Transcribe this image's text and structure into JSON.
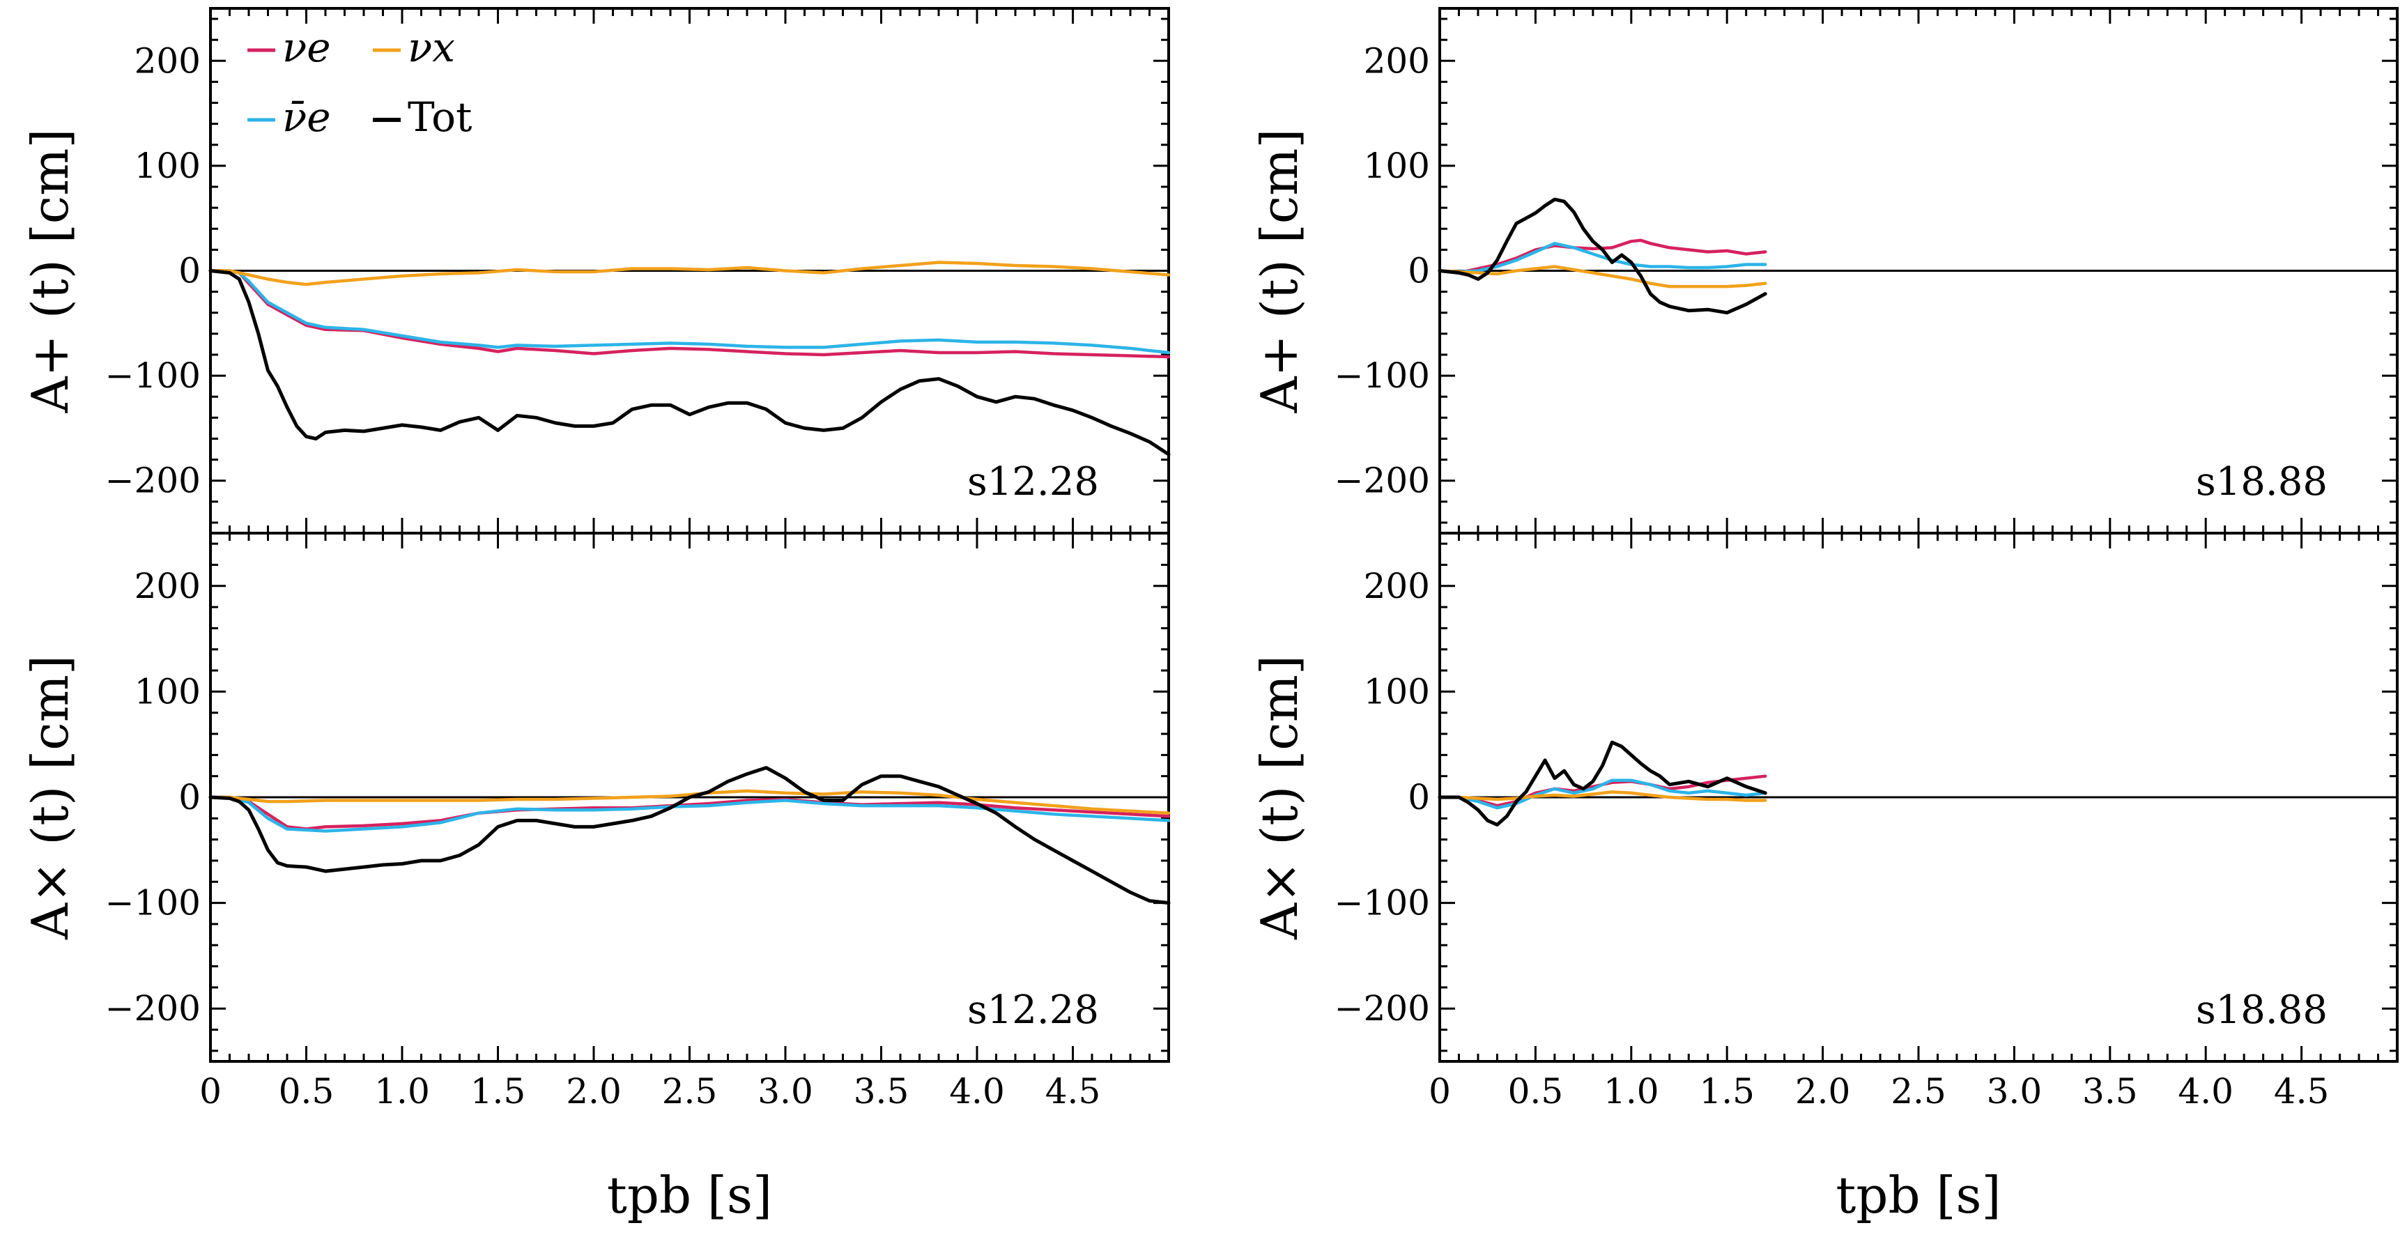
{
  "chart_data": [
    {
      "type": "line",
      "row": "top",
      "col": "left",
      "panel_label": "s12.28",
      "ylabel": "A+ (t) [cm]",
      "xlabel": "",
      "xlim": [
        0,
        5.0
      ],
      "ylim": [
        -250,
        250
      ],
      "x_ticks": [
        "0",
        "0.5",
        "1.0",
        "1.5",
        "2.0",
        "2.5",
        "3.0",
        "3.5",
        "4.0",
        "4.5"
      ],
      "y_ticks": [
        "−200",
        "−100",
        "0",
        "100",
        "200"
      ],
      "legend": "top-left",
      "zero_line": true,
      "series": [
        {
          "name": "νe",
          "color": "#d6225e",
          "x": [
            0,
            0.1,
            0.15,
            0.2,
            0.3,
            0.4,
            0.5,
            0.6,
            0.8,
            1.0,
            1.2,
            1.4,
            1.5,
            1.6,
            1.8,
            2.0,
            2.2,
            2.4,
            2.6,
            2.8,
            3.0,
            3.2,
            3.4,
            3.6,
            3.8,
            4.0,
            4.2,
            4.4,
            4.6,
            4.8,
            5.0
          ],
          "y": [
            0,
            0,
            -2,
            -12,
            -32,
            -42,
            -52,
            -56,
            -57,
            -64,
            -70,
            -74,
            -77,
            -74,
            -76,
            -79,
            -76,
            -74,
            -75,
            -77,
            -79,
            -80,
            -78,
            -76,
            -78,
            -78,
            -77,
            -79,
            -80,
            -81,
            -82
          ]
        },
        {
          "name": "ν̄e",
          "color": "#2cb4e8",
          "x": [
            0,
            0.1,
            0.15,
            0.2,
            0.3,
            0.4,
            0.5,
            0.6,
            0.8,
            1.0,
            1.2,
            1.4,
            1.5,
            1.6,
            1.8,
            2.0,
            2.2,
            2.4,
            2.6,
            2.8,
            3.0,
            3.2,
            3.4,
            3.6,
            3.8,
            4.0,
            4.2,
            4.4,
            4.6,
            4.8,
            5.0
          ],
          "y": [
            0,
            0,
            -2,
            -10,
            -30,
            -40,
            -50,
            -54,
            -56,
            -62,
            -68,
            -71,
            -73,
            -71,
            -72,
            -71,
            -70,
            -69,
            -70,
            -72,
            -73,
            -73,
            -70,
            -67,
            -66,
            -68,
            -68,
            -69,
            -71,
            -74,
            -78
          ]
        },
        {
          "name": "νx",
          "color": "#f2a11c",
          "x": [
            0,
            0.1,
            0.2,
            0.3,
            0.4,
            0.5,
            0.6,
            0.8,
            1.0,
            1.2,
            1.4,
            1.6,
            1.8,
            2.0,
            2.2,
            2.4,
            2.6,
            2.8,
            3.0,
            3.2,
            3.4,
            3.6,
            3.8,
            4.0,
            4.2,
            4.4,
            4.6,
            4.8,
            5.0
          ],
          "y": [
            0,
            0,
            -4,
            -8,
            -11,
            -13,
            -11,
            -8,
            -5,
            -3,
            -2,
            1,
            -1,
            -1,
            2,
            2,
            1,
            3,
            0,
            -2,
            2,
            5,
            8,
            7,
            5,
            4,
            2,
            -1,
            -4
          ]
        },
        {
          "name": "Tot",
          "color": "#000000",
          "x": [
            0,
            0.1,
            0.15,
            0.2,
            0.25,
            0.3,
            0.35,
            0.4,
            0.45,
            0.5,
            0.55,
            0.6,
            0.7,
            0.8,
            0.9,
            1.0,
            1.1,
            1.2,
            1.3,
            1.4,
            1.5,
            1.6,
            1.7,
            1.8,
            1.9,
            2.0,
            2.1,
            2.2,
            2.3,
            2.4,
            2.5,
            2.6,
            2.7,
            2.8,
            2.9,
            3.0,
            3.1,
            3.2,
            3.3,
            3.4,
            3.5,
            3.6,
            3.7,
            3.8,
            3.9,
            4.0,
            4.1,
            4.2,
            4.3,
            4.4,
            4.5,
            4.6,
            4.7,
            4.8,
            4.9,
            5.0
          ],
          "y": [
            0,
            -2,
            -8,
            -30,
            -60,
            -95,
            -110,
            -130,
            -148,
            -158,
            -160,
            -154,
            -152,
            -153,
            -150,
            -147,
            -149,
            -152,
            -144,
            -140,
            -152,
            -138,
            -140,
            -145,
            -148,
            -148,
            -145,
            -132,
            -128,
            -128,
            -137,
            -130,
            -126,
            -126,
            -132,
            -145,
            -150,
            -152,
            -150,
            -140,
            -125,
            -113,
            -105,
            -103,
            -110,
            -120,
            -125,
            -120,
            -122,
            -128,
            -133,
            -140,
            -148,
            -155,
            -163,
            -175
          ]
        }
      ]
    },
    {
      "type": "line",
      "row": "top",
      "col": "right",
      "panel_label": "s18.88",
      "ylabel": "A+ (t) [cm]",
      "xlabel": "",
      "xlim": [
        0,
        5.0
      ],
      "ylim": [
        -250,
        250
      ],
      "x_ticks": [
        "0",
        "0.5",
        "1.0",
        "1.5",
        "2.0",
        "2.5",
        "3.0",
        "3.5",
        "4.0",
        "4.5"
      ],
      "y_ticks": [
        "−200",
        "−100",
        "0",
        "100",
        "200"
      ],
      "zero_line": true,
      "series": [
        {
          "name": "νe",
          "color": "#d6225e",
          "x": [
            0,
            0.1,
            0.2,
            0.3,
            0.4,
            0.5,
            0.6,
            0.7,
            0.8,
            0.9,
            1.0,
            1.05,
            1.1,
            1.2,
            1.3,
            1.4,
            1.5,
            1.6,
            1.7
          ],
          "y": [
            0,
            -2,
            2,
            6,
            12,
            20,
            24,
            22,
            21,
            22,
            28,
            29,
            26,
            22,
            20,
            18,
            19,
            16,
            18
          ]
        },
        {
          "name": "ν̄e",
          "color": "#2cb4e8",
          "x": [
            0,
            0.1,
            0.2,
            0.3,
            0.4,
            0.5,
            0.6,
            0.7,
            0.8,
            0.9,
            1.0,
            1.1,
            1.2,
            1.3,
            1.4,
            1.5,
            1.6,
            1.7
          ],
          "y": [
            0,
            -1,
            0,
            4,
            10,
            18,
            26,
            22,
            16,
            10,
            6,
            4,
            4,
            3,
            3,
            4,
            6,
            6
          ]
        },
        {
          "name": "νx",
          "color": "#f2a11c",
          "x": [
            0,
            0.1,
            0.2,
            0.3,
            0.4,
            0.5,
            0.6,
            0.7,
            0.8,
            0.9,
            1.0,
            1.1,
            1.2,
            1.3,
            1.4,
            1.5,
            1.6,
            1.7
          ],
          "y": [
            0,
            -1,
            -2,
            -3,
            0,
            2,
            4,
            1,
            -2,
            -5,
            -8,
            -12,
            -15,
            -15,
            -15,
            -15,
            -14,
            -12
          ]
        },
        {
          "name": "Tot",
          "color": "#000000",
          "x": [
            0,
            0.1,
            0.15,
            0.2,
            0.25,
            0.3,
            0.35,
            0.4,
            0.45,
            0.5,
            0.55,
            0.6,
            0.65,
            0.7,
            0.75,
            0.8,
            0.85,
            0.9,
            0.95,
            1.0,
            1.05,
            1.1,
            1.15,
            1.2,
            1.3,
            1.4,
            1.5,
            1.6,
            1.7
          ],
          "y": [
            0,
            -2,
            -4,
            -8,
            -2,
            10,
            28,
            45,
            50,
            55,
            62,
            68,
            66,
            56,
            40,
            28,
            20,
            8,
            15,
            8,
            -5,
            -22,
            -30,
            -34,
            -38,
            -37,
            -40,
            -32,
            -22
          ]
        }
      ]
    },
    {
      "type": "line",
      "row": "bottom",
      "col": "left",
      "panel_label": "s12.28",
      "ylabel": "A× (t) [cm]",
      "xlabel": "tpb [s]",
      "xlim": [
        0,
        5.0
      ],
      "ylim": [
        -250,
        250
      ],
      "x_ticks": [
        "0",
        "0.5",
        "1.0",
        "1.5",
        "2.0",
        "2.5",
        "3.0",
        "3.5",
        "4.0",
        "4.5"
      ],
      "y_ticks": [
        "−200",
        "−100",
        "0",
        "100",
        "200"
      ],
      "zero_line": true,
      "series": [
        {
          "name": "νe",
          "color": "#d6225e",
          "x": [
            0,
            0.1,
            0.2,
            0.3,
            0.4,
            0.5,
            0.6,
            0.8,
            1.0,
            1.2,
            1.4,
            1.6,
            1.8,
            2.0,
            2.2,
            2.4,
            2.6,
            2.8,
            3.0,
            3.2,
            3.4,
            3.6,
            3.8,
            4.0,
            4.2,
            4.4,
            4.6,
            4.8,
            5.0
          ],
          "y": [
            0,
            0,
            -4,
            -16,
            -28,
            -30,
            -28,
            -27,
            -25,
            -22,
            -15,
            -12,
            -11,
            -10,
            -10,
            -8,
            -6,
            -3,
            -2,
            -5,
            -7,
            -6,
            -5,
            -7,
            -10,
            -12,
            -14,
            -16,
            -18
          ]
        },
        {
          "name": "ν̄e",
          "color": "#2cb4e8",
          "x": [
            0,
            0.1,
            0.2,
            0.3,
            0.4,
            0.5,
            0.6,
            0.8,
            1.0,
            1.2,
            1.4,
            1.6,
            1.8,
            2.0,
            2.2,
            2.4,
            2.6,
            2.8,
            3.0,
            3.2,
            3.4,
            3.6,
            3.8,
            4.0,
            4.2,
            4.4,
            4.6,
            4.8,
            5.0
          ],
          "y": [
            0,
            0,
            -5,
            -20,
            -30,
            -31,
            -32,
            -30,
            -28,
            -24,
            -15,
            -11,
            -12,
            -12,
            -11,
            -9,
            -8,
            -5,
            -3,
            -6,
            -8,
            -8,
            -8,
            -10,
            -13,
            -16,
            -18,
            -20,
            -22
          ]
        },
        {
          "name": "νx",
          "color": "#f2a11c",
          "x": [
            0,
            0.1,
            0.2,
            0.3,
            0.4,
            0.6,
            0.8,
            1.0,
            1.2,
            1.4,
            1.6,
            1.8,
            2.0,
            2.2,
            2.4,
            2.6,
            2.8,
            3.0,
            3.2,
            3.4,
            3.6,
            3.8,
            4.0,
            4.2,
            4.4,
            4.6,
            4.8,
            5.0
          ],
          "y": [
            0,
            0,
            -2,
            -4,
            -4,
            -3,
            -3,
            -3,
            -3,
            -3,
            -2,
            -2,
            -1,
            0,
            1,
            4,
            6,
            4,
            3,
            5,
            4,
            2,
            -2,
            -5,
            -8,
            -11,
            -13,
            -15
          ]
        },
        {
          "name": "Tot",
          "color": "#000000",
          "x": [
            0,
            0.1,
            0.15,
            0.2,
            0.25,
            0.3,
            0.35,
            0.4,
            0.5,
            0.6,
            0.7,
            0.8,
            0.9,
            1.0,
            1.1,
            1.2,
            1.3,
            1.4,
            1.5,
            1.6,
            1.7,
            1.8,
            1.9,
            2.0,
            2.1,
            2.2,
            2.3,
            2.4,
            2.5,
            2.6,
            2.7,
            2.8,
            2.9,
            3.0,
            3.1,
            3.2,
            3.3,
            3.4,
            3.5,
            3.6,
            3.7,
            3.8,
            3.9,
            4.0,
            4.1,
            4.2,
            4.3,
            4.4,
            4.5,
            4.6,
            4.7,
            4.8,
            4.9,
            5.0
          ],
          "y": [
            0,
            -1,
            -4,
            -12,
            -30,
            -50,
            -62,
            -65,
            -66,
            -70,
            -68,
            -66,
            -64,
            -63,
            -60,
            -60,
            -55,
            -45,
            -28,
            -22,
            -22,
            -25,
            -28,
            -28,
            -25,
            -22,
            -18,
            -10,
            0,
            5,
            15,
            22,
            28,
            18,
            5,
            -3,
            -3,
            12,
            20,
            20,
            15,
            10,
            2,
            -6,
            -15,
            -28,
            -40,
            -50,
            -60,
            -70,
            -80,
            -90,
            -98,
            -100
          ]
        }
      ]
    },
    {
      "type": "line",
      "row": "bottom",
      "col": "right",
      "panel_label": "s18.88",
      "ylabel": "A× (t) [cm]",
      "xlabel": "tpb [s]",
      "xlim": [
        0,
        5.0
      ],
      "ylim": [
        -250,
        250
      ],
      "x_ticks": [
        "0",
        "0.5",
        "1.0",
        "1.5",
        "2.0",
        "2.5",
        "3.0",
        "3.5",
        "4.0",
        "4.5"
      ],
      "y_ticks": [
        "−200",
        "−100",
        "0",
        "100",
        "200"
      ],
      "zero_line": true,
      "series": [
        {
          "name": "νe",
          "color": "#d6225e",
          "x": [
            0,
            0.1,
            0.2,
            0.3,
            0.4,
            0.5,
            0.6,
            0.7,
            0.8,
            0.9,
            1.0,
            1.1,
            1.2,
            1.3,
            1.4,
            1.5,
            1.6,
            1.7
          ],
          "y": [
            0,
            0,
            -3,
            -8,
            -4,
            4,
            8,
            6,
            10,
            14,
            15,
            12,
            8,
            10,
            14,
            16,
            18,
            20
          ]
        },
        {
          "name": "ν̄e",
          "color": "#2cb4e8",
          "x": [
            0,
            0.1,
            0.2,
            0.3,
            0.4,
            0.5,
            0.6,
            0.7,
            0.8,
            0.9,
            1.0,
            1.1,
            1.2,
            1.3,
            1.4,
            1.5,
            1.6,
            1.7
          ],
          "y": [
            0,
            0,
            -4,
            -10,
            -6,
            2,
            8,
            4,
            8,
            16,
            16,
            12,
            6,
            4,
            6,
            4,
            2,
            4
          ]
        },
        {
          "name": "νx",
          "color": "#f2a11c",
          "x": [
            0,
            0.1,
            0.2,
            0.3,
            0.4,
            0.5,
            0.6,
            0.7,
            0.8,
            0.9,
            1.0,
            1.1,
            1.2,
            1.3,
            1.4,
            1.5,
            1.6,
            1.7
          ],
          "y": [
            0,
            0,
            -1,
            -2,
            -1,
            1,
            2,
            1,
            3,
            5,
            4,
            2,
            0,
            -1,
            -2,
            -2,
            -3,
            -3
          ]
        },
        {
          "name": "Tot",
          "color": "#000000",
          "x": [
            0,
            0.1,
            0.15,
            0.2,
            0.25,
            0.3,
            0.35,
            0.4,
            0.45,
            0.5,
            0.55,
            0.6,
            0.65,
            0.7,
            0.75,
            0.8,
            0.85,
            0.9,
            0.95,
            1.0,
            1.05,
            1.1,
            1.15,
            1.2,
            1.3,
            1.4,
            1.5,
            1.6,
            1.7
          ],
          "y": [
            0,
            0,
            -5,
            -12,
            -22,
            -26,
            -18,
            -4,
            5,
            20,
            35,
            18,
            25,
            12,
            8,
            15,
            30,
            52,
            48,
            40,
            32,
            25,
            20,
            12,
            15,
            10,
            18,
            10,
            4
          ]
        }
      ]
    }
  ],
  "legend": {
    "items": [
      {
        "label": "νe",
        "color": "#d6225e"
      },
      {
        "label": "νx",
        "color": "#f2a11c"
      },
      {
        "label": "ν̄e",
        "color": "#2cb4e8"
      },
      {
        "label": "Tot",
        "color": "#000000"
      }
    ]
  }
}
